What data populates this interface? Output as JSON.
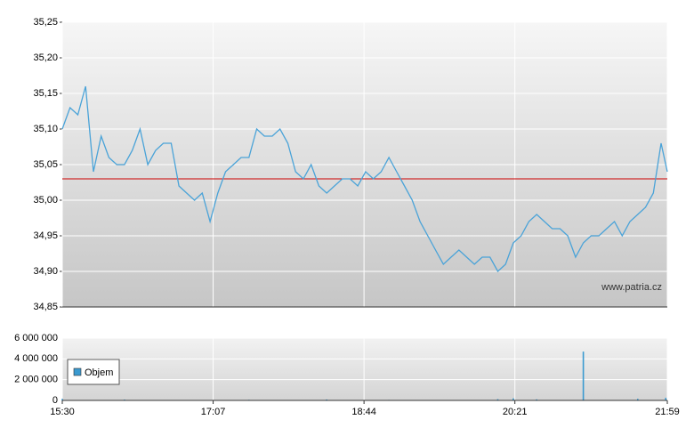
{
  "chart_data": [
    {
      "type": "line",
      "color": "#4aa3d8",
      "x": [
        "15:30",
        "15:35",
        "15:40",
        "15:45",
        "15:50",
        "15:55",
        "16:00",
        "16:05",
        "16:10",
        "16:15",
        "16:20",
        "16:25",
        "16:30",
        "16:35",
        "16:40",
        "16:45",
        "16:50",
        "16:55",
        "17:00",
        "17:05",
        "17:10",
        "17:15",
        "17:20",
        "17:25",
        "17:30",
        "17:35",
        "17:40",
        "17:45",
        "17:50",
        "17:55",
        "18:00",
        "18:05",
        "18:10",
        "18:15",
        "18:20",
        "18:25",
        "18:30",
        "18:35",
        "18:40",
        "18:45",
        "18:50",
        "18:55",
        "19:00",
        "19:05",
        "19:10",
        "19:15",
        "19:20",
        "19:25",
        "19:30",
        "19:35",
        "19:40",
        "19:45",
        "19:50",
        "19:55",
        "20:00",
        "20:05",
        "20:10",
        "20:15",
        "20:20",
        "20:25",
        "20:30",
        "20:35",
        "20:40",
        "20:45",
        "20:50",
        "20:55",
        "21:00",
        "21:05",
        "21:10",
        "21:15",
        "21:20",
        "21:25",
        "21:30",
        "21:35",
        "21:40",
        "21:45",
        "21:50",
        "21:55",
        "21:59"
      ],
      "values": [
        35.1,
        35.13,
        35.12,
        35.16,
        35.04,
        35.09,
        35.06,
        35.05,
        35.05,
        35.07,
        35.1,
        35.05,
        35.07,
        35.08,
        35.08,
        35.02,
        35.01,
        35.0,
        35.01,
        34.97,
        35.01,
        35.04,
        35.05,
        35.06,
        35.06,
        35.1,
        35.09,
        35.09,
        35.1,
        35.08,
        35.04,
        35.03,
        35.05,
        35.02,
        35.01,
        35.02,
        35.03,
        35.03,
        35.02,
        35.04,
        35.03,
        35.04,
        35.06,
        35.04,
        35.02,
        35.0,
        34.97,
        34.95,
        34.93,
        34.91,
        34.92,
        34.93,
        34.92,
        34.91,
        34.92,
        34.92,
        34.9,
        34.91,
        34.94,
        34.95,
        34.97,
        34.98,
        34.97,
        34.96,
        34.96,
        34.95,
        34.92,
        34.94,
        34.95,
        34.95,
        34.96,
        34.97,
        34.95,
        34.97,
        34.98,
        34.99,
        35.01,
        35.08,
        35.04
      ],
      "xlim": [
        "15:30",
        "21:59"
      ],
      "ylim": [
        34.85,
        35.25
      ],
      "yticks": [
        {
          "value": 34.85,
          "label": "34,85"
        },
        {
          "value": 34.9,
          "label": "34,90"
        },
        {
          "value": 34.95,
          "label": "34,95"
        },
        {
          "value": 35.0,
          "label": "35,00"
        },
        {
          "value": 35.05,
          "label": "35,05"
        },
        {
          "value": 35.1,
          "label": "35,10"
        },
        {
          "value": 35.15,
          "label": "35,15"
        },
        {
          "value": 35.2,
          "label": "35,20"
        },
        {
          "value": 35.25,
          "label": "35,25"
        }
      ],
      "reference_line": 35.03,
      "reference_color": "#cc0000",
      "grid": true,
      "annotation": "www.patria.cz"
    },
    {
      "type": "bar",
      "x": [
        "15:30",
        "16:10",
        "17:30",
        "18:20",
        "19:00",
        "20:10",
        "20:20",
        "20:35",
        "21:05",
        "21:40",
        "21:58"
      ],
      "series": [
        {
          "name": "Objem",
          "color": "#3a9ad0",
          "values": [
            150000,
            80000,
            60000,
            90000,
            50000,
            120000,
            200000,
            100000,
            4700000,
            150000,
            250000
          ]
        }
      ],
      "xlim": [
        "15:30",
        "21:59"
      ],
      "xticks": [
        "15:30",
        "17:07",
        "18:44",
        "20:21",
        "21:59"
      ],
      "ylim": [
        0,
        6000000
      ],
      "yticks": [
        0,
        {
          "value": 2000000,
          "label": "2 000 000"
        },
        {
          "value": 4000000,
          "label": "4 000 000"
        },
        {
          "value": 6000000,
          "label": "6 000 000"
        }
      ],
      "grid": true,
      "legend": "upper-left"
    }
  ]
}
